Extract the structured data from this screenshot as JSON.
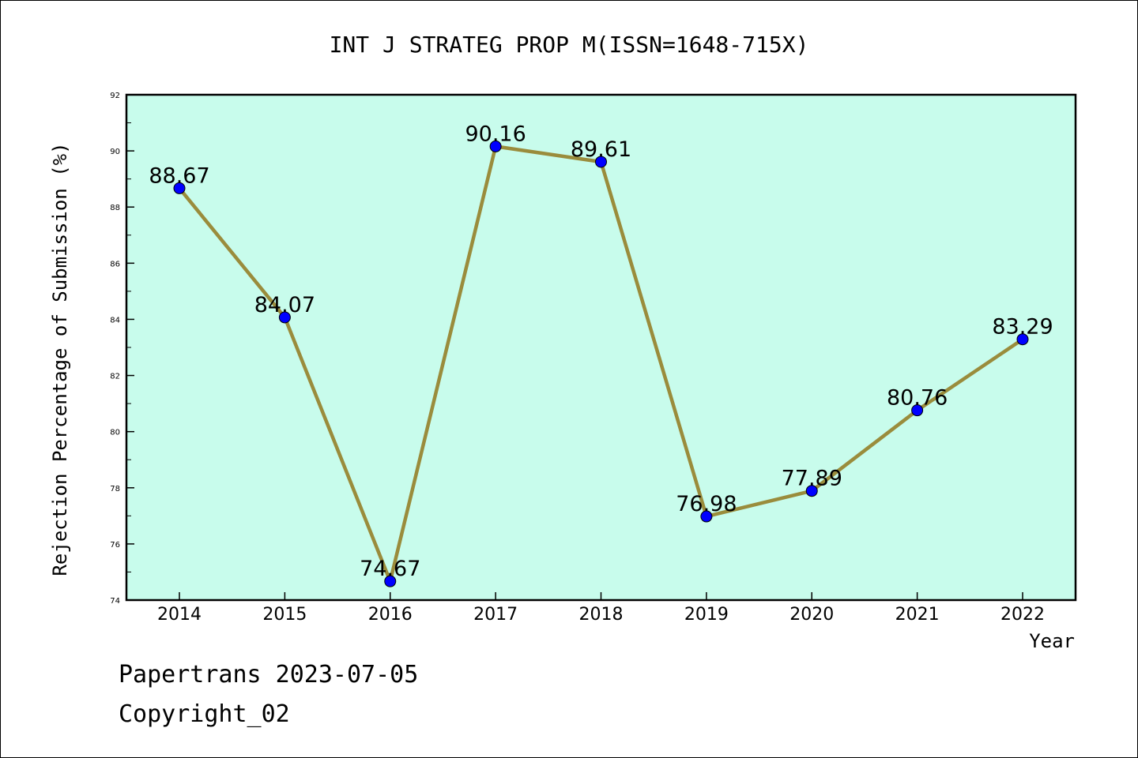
{
  "chart_data": {
    "type": "line",
    "title": "INT J STRATEG PROP M(ISSN=1648-715X)",
    "xlabel": "Year",
    "ylabel": "Rejection Percentage of Submission (%)",
    "categories": [
      "2014",
      "2015",
      "2016",
      "2017",
      "2018",
      "2019",
      "2020",
      "2021",
      "2022"
    ],
    "values": [
      88.67,
      84.07,
      74.67,
      90.16,
      89.61,
      76.98,
      77.89,
      80.76,
      83.29
    ],
    "data_labels": [
      "88.67",
      "84.07",
      "74.67",
      "90.16",
      "89.61",
      "76.98",
      "77.89",
      "80.76",
      "83.29"
    ],
    "ylim": [
      74,
      92
    ],
    "yticks": [
      "74",
      "76",
      "78",
      "80",
      "82",
      "84",
      "86",
      "88",
      "90",
      "92"
    ],
    "grid": false,
    "colors": {
      "plot_background": "#c8fcec",
      "line": "#9a8c3c",
      "marker": "#0000ff"
    }
  },
  "footer": {
    "line1": "Papertrans 2023-07-05",
    "line2": "Copyright_02"
  }
}
